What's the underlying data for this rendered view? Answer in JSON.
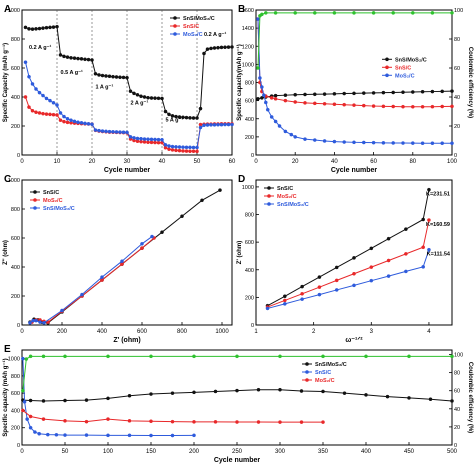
{
  "colors": {
    "black": "#111111",
    "red": "#e8282a",
    "blue": "#2e5bdc",
    "green": "#2fc12f",
    "frame": "#000000"
  },
  "chart_data": [
    {
      "panel": "A",
      "type": "scatter",
      "xlabel": "Cycle number",
      "ylabel": "Specific Capacity (mAh g⁻¹)",
      "xlim": [
        0,
        60
      ],
      "ylim": [
        0,
        1000
      ],
      "xticks": [
        0,
        10,
        20,
        30,
        40,
        50,
        60
      ],
      "yticks": [
        0,
        200,
        400,
        600,
        800,
        1000
      ],
      "legend": [
        "SnS/MoS₂/C",
        "SnS/C",
        "MoS₂/C"
      ],
      "annotations": [
        "0.2 A g⁻¹",
        "0.5 A g⁻¹",
        "1 A g⁻¹",
        "2 A g⁻¹",
        "5 A g⁻¹",
        "0.2 A g⁻¹"
      ],
      "dividers": [
        10,
        20,
        30,
        40,
        50
      ],
      "series": [
        {
          "name": "SnS/MoS₂/C",
          "color": "black",
          "x": [
            1,
            2,
            3,
            4,
            5,
            6,
            7,
            8,
            9,
            10,
            11,
            12,
            13,
            14,
            15,
            16,
            17,
            18,
            19,
            20,
            21,
            22,
            23,
            24,
            25,
            26,
            27,
            28,
            29,
            30,
            31,
            32,
            33,
            34,
            35,
            36,
            37,
            38,
            39,
            40,
            41,
            42,
            43,
            44,
            45,
            46,
            47,
            48,
            49,
            50,
            51,
            52,
            53,
            54,
            55,
            56,
            57,
            58,
            59,
            60
          ],
          "y": [
            880,
            870,
            868,
            870,
            872,
            875,
            878,
            880,
            882,
            885,
            690,
            680,
            675,
            670,
            668,
            665,
            663,
            660,
            658,
            655,
            560,
            552,
            548,
            545,
            543,
            540,
            538,
            536,
            535,
            533,
            440,
            425,
            415,
            405,
            400,
            395,
            393,
            392,
            391,
            390,
            300,
            280,
            270,
            265,
            262,
            260,
            258,
            256,
            255,
            255,
            320,
            700,
            730,
            735,
            738,
            740,
            742,
            743,
            744,
            745
          ]
        },
        {
          "name": "SnS/C",
          "color": "red",
          "x": [
            1,
            2,
            3,
            4,
            5,
            6,
            7,
            8,
            9,
            10,
            11,
            12,
            13,
            14,
            15,
            16,
            17,
            18,
            19,
            20,
            21,
            22,
            23,
            24,
            25,
            26,
            27,
            28,
            29,
            30,
            31,
            32,
            33,
            34,
            35,
            36,
            37,
            38,
            39,
            40,
            41,
            42,
            43,
            44,
            45,
            46,
            47,
            48,
            49,
            50,
            51,
            52,
            53,
            54,
            55,
            56,
            57,
            58,
            59,
            60
          ],
          "y": [
            400,
            330,
            305,
            295,
            290,
            285,
            282,
            280,
            278,
            276,
            240,
            230,
            225,
            222,
            220,
            218,
            216,
            215,
            214,
            213,
            170,
            165,
            162,
            160,
            158,
            157,
            156,
            155,
            154,
            153,
            110,
            100,
            95,
            92,
            90,
            88,
            87,
            86,
            85,
            85,
            50,
            40,
            35,
            32,
            30,
            28,
            27,
            26,
            26,
            25,
            210,
            212,
            213,
            213,
            214,
            214,
            215,
            215,
            215,
            215
          ]
        },
        {
          "name": "MoS₂/C",
          "color": "blue",
          "x": [
            1,
            2,
            3,
            4,
            5,
            6,
            7,
            8,
            9,
            10,
            11,
            12,
            13,
            14,
            15,
            16,
            17,
            18,
            19,
            20,
            21,
            22,
            23,
            24,
            25,
            26,
            27,
            28,
            29,
            30,
            31,
            32,
            33,
            34,
            35,
            36,
            37,
            38,
            39,
            40,
            41,
            42,
            43,
            44,
            45,
            46,
            47,
            48,
            49,
            50,
            51,
            52,
            53,
            54,
            55,
            56,
            57,
            58,
            59,
            60
          ],
          "y": [
            640,
            540,
            490,
            455,
            430,
            410,
            390,
            375,
            360,
            345,
            290,
            265,
            250,
            240,
            232,
            226,
            222,
            218,
            215,
            212,
            172,
            168,
            165,
            163,
            161,
            160,
            159,
            158,
            157,
            156,
            125,
            118,
            114,
            112,
            110,
            109,
            108,
            107,
            106,
            105,
            70,
            62,
            58,
            56,
            55,
            54,
            53,
            53,
            52,
            52,
            190,
            205,
            207,
            208,
            208,
            209,
            209,
            210,
            210,
            210
          ]
        }
      ]
    },
    {
      "panel": "B",
      "type": "scatter",
      "xlabel": "Cycle number",
      "ylabel": "Specific capacity(mAh g⁻¹)",
      "y2label": "Coulombic efficiency (%)",
      "xlim": [
        0,
        100
      ],
      "ylim": [
        0,
        1600
      ],
      "y2lim": [
        0,
        100
      ],
      "xticks": [
        0,
        20,
        40,
        60,
        80,
        100
      ],
      "yticks": [
        0,
        200,
        400,
        600,
        800,
        1000,
        1200,
        1400,
        1600
      ],
      "y2ticks": [
        0,
        20,
        40,
        60,
        80,
        100
      ],
      "legend": [
        "SnS/MoS₂/C",
        "SnS/C",
        "MoS₂/C"
      ],
      "series": [
        {
          "name": "SnS/MoS₂/C",
          "color": "black",
          "x": [
            1,
            3,
            5,
            8,
            10,
            15,
            20,
            25,
            30,
            35,
            40,
            45,
            50,
            55,
            60,
            65,
            70,
            75,
            80,
            85,
            90,
            95,
            100
          ],
          "y": [
            620,
            630,
            640,
            650,
            655,
            660,
            665,
            668,
            670,
            672,
            675,
            678,
            680,
            683,
            685,
            688,
            690,
            693,
            695,
            698,
            700,
            702,
            705
          ]
        },
        {
          "name": "SnS/C",
          "color": "red",
          "x": [
            1,
            2,
            3,
            5,
            8,
            10,
            15,
            20,
            25,
            30,
            35,
            40,
            45,
            50,
            55,
            60,
            65,
            70,
            75,
            80,
            85,
            90,
            95,
            100
          ],
          "y": [
            1500,
            800,
            700,
            650,
            630,
            620,
            600,
            585,
            575,
            570,
            565,
            560,
            555,
            550,
            545,
            540,
            537,
            535,
            533,
            532,
            532,
            533,
            535,
            537
          ]
        },
        {
          "name": "MoS₂/C",
          "color": "blue",
          "x": [
            1,
            2,
            3,
            4,
            5,
            6,
            8,
            10,
            12,
            15,
            18,
            20,
            25,
            30,
            35,
            40,
            45,
            50,
            55,
            60,
            65,
            70,
            75,
            80,
            85,
            90,
            95,
            100
          ],
          "y": [
            1500,
            850,
            750,
            660,
            580,
            500,
            420,
            370,
            320,
            260,
            225,
            200,
            175,
            165,
            155,
            148,
            143,
            140,
            138,
            136,
            134,
            133,
            132,
            131,
            130,
            130,
            130,
            130
          ]
        },
        {
          "name": "Coulombic efficiency",
          "color": "green",
          "axis": "right",
          "x": [
            1,
            2,
            3,
            5,
            10,
            20,
            30,
            40,
            50,
            60,
            70,
            80,
            90,
            100
          ],
          "y": [
            60,
            96,
            97,
            98,
            98,
            98,
            98,
            98,
            98,
            98,
            98,
            98,
            98,
            98
          ]
        }
      ]
    },
    {
      "panel": "C",
      "type": "scatter",
      "xlabel": "Z' (ohm)",
      "ylabel": "Z'' (ohm)",
      "xlim": [
        0,
        1050
      ],
      "ylim": [
        0,
        1000
      ],
      "xticks": [
        0,
        200,
        400,
        600,
        800,
        1000
      ],
      "yticks": [
        0,
        200,
        400,
        600,
        800,
        1000
      ],
      "legend": [
        "SnS/C",
        "MoS₂/C",
        "SnS/MoS₂/C"
      ],
      "series": [
        {
          "name": "SnS/C",
          "color": "black",
          "x": [
            40,
            60,
            80,
            100,
            130,
            200,
            300,
            400,
            500,
            600,
            700,
            800,
            900,
            990
          ],
          "y": [
            20,
            40,
            35,
            20,
            15,
            90,
            200,
            310,
            420,
            530,
            640,
            750,
            860,
            930
          ]
        },
        {
          "name": "MoS₂/C",
          "color": "red",
          "x": [
            50,
            70,
            90,
            110,
            130,
            200,
            300,
            400,
            500,
            600,
            660
          ],
          "y": [
            20,
            35,
            35,
            25,
            20,
            95,
            200,
            310,
            420,
            530,
            600
          ]
        },
        {
          "name": "SnS/MoS₂/C",
          "color": "blue",
          "x": [
            40,
            55,
            70,
            90,
            110,
            200,
            300,
            400,
            500,
            600,
            650
          ],
          "y": [
            15,
            30,
            30,
            20,
            15,
            100,
            210,
            330,
            440,
            560,
            610
          ]
        }
      ]
    },
    {
      "panel": "D",
      "type": "scatter",
      "xlabel": "ω⁻¹ᐟ²",
      "ylabel": "Z' (ohm)",
      "xlim": [
        1,
        4.4
      ],
      "ylim": [
        0,
        1050
      ],
      "xticks": [
        1,
        2,
        3,
        4
      ],
      "yticks": [
        0,
        200,
        400,
        600,
        800,
        1000
      ],
      "legend": [
        "SnS/C",
        "MoS₂/C",
        "SnS/MoS₂/C"
      ],
      "annotations": [
        "K=231.51",
        "K=160.59",
        "K=111.54"
      ],
      "series": [
        {
          "name": "SnS/C",
          "color": "black",
          "x": [
            1.2,
            1.5,
            1.8,
            2.1,
            2.4,
            2.7,
            3.0,
            3.3,
            3.6,
            3.9,
            4.0
          ],
          "y": [
            140,
            208,
            278,
            347,
            417,
            486,
            555,
            625,
            694,
            764,
            980
          ]
        },
        {
          "name": "MoS₂/C",
          "color": "red",
          "x": [
            1.2,
            1.5,
            1.8,
            2.1,
            2.4,
            2.7,
            3.0,
            3.3,
            3.6,
            3.9,
            4.0
          ],
          "y": [
            130,
            178,
            226,
            274,
            323,
            371,
            419,
            467,
            515,
            563,
            760
          ]
        },
        {
          "name": "SnS/MoS₂/C",
          "color": "blue",
          "x": [
            1.2,
            1.5,
            1.8,
            2.1,
            2.4,
            2.7,
            3.0,
            3.3,
            3.6,
            3.9,
            4.0
          ],
          "y": [
            120,
            153,
            187,
            220,
            254,
            287,
            321,
            354,
            388,
            421,
            545
          ]
        }
      ]
    },
    {
      "panel": "E",
      "type": "scatter",
      "xlabel": "Cycle number",
      "ylabel": "Specific capacity (mAh g⁻¹)",
      "y2label": "Coulombic efficiency (%)",
      "xlim": [
        0,
        500
      ],
      "ylim": [
        0,
        1100
      ],
      "y2lim": [
        0,
        105
      ],
      "xticks": [
        0,
        50,
        100,
        150,
        200,
        250,
        300,
        350,
        400,
        450,
        500
      ],
      "yticks": [
        0,
        200,
        400,
        600,
        800,
        1000
      ],
      "y2ticks": [
        0,
        20,
        40,
        60,
        80,
        100
      ],
      "legend": [
        "SnS/MoS₂/C",
        "SnS/C",
        "MoS₂/C"
      ],
      "series": [
        {
          "name": "SnS/MoS₂/C",
          "color": "black",
          "x": [
            1,
            10,
            25,
            50,
            75,
            100,
            125,
            150,
            175,
            200,
            225,
            250,
            275,
            300,
            325,
            350,
            375,
            400,
            425,
            450,
            475,
            500
          ],
          "y": [
            520,
            515,
            510,
            515,
            520,
            540,
            570,
            590,
            600,
            610,
            620,
            630,
            640,
            640,
            625,
            620,
            600,
            580,
            560,
            545,
            530,
            510
          ]
        },
        {
          "name": "SnS/C",
          "color": "blue",
          "x": [
            1,
            3,
            6,
            10,
            15,
            20,
            30,
            40,
            50,
            75,
            100,
            125,
            150,
            175,
            200
          ],
          "y": [
            1000,
            500,
            300,
            200,
            150,
            130,
            120,
            118,
            115,
            115,
            112,
            112,
            110,
            110,
            112
          ]
        },
        {
          "name": "MoS₂/C",
          "color": "red",
          "x": [
            1,
            10,
            25,
            50,
            75,
            100,
            125,
            150,
            175,
            200,
            225,
            250,
            275,
            300,
            325,
            350
          ],
          "y": [
            400,
            330,
            300,
            280,
            270,
            300,
            280,
            275,
            270,
            268,
            268,
            266,
            266,
            265,
            265,
            265
          ]
        },
        {
          "name": "Coulombic efficiency",
          "color": "green",
          "axis": "right",
          "x": [
            1,
            5,
            10,
            25,
            50,
            100,
            150,
            200,
            250,
            300,
            350,
            400,
            450,
            500
          ],
          "y": [
            60,
            95,
            98,
            98,
            98,
            98,
            98,
            98,
            98,
            98,
            98,
            98,
            98,
            98
          ]
        }
      ]
    }
  ]
}
